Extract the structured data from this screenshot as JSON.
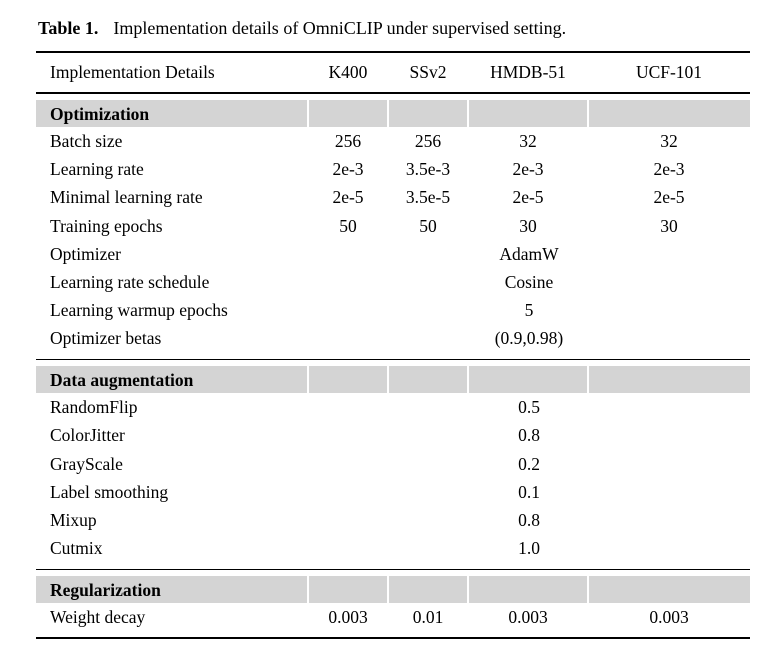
{
  "caption": {
    "label": "Table 1.",
    "text": "Implementation details of OmniCLIP under supervised setting."
  },
  "colors": {
    "section_bg": "#d4d4d4"
  },
  "table": {
    "columns": [
      "Implementation Details",
      "K400",
      "SSv2",
      "HMDB-51",
      "UCF-101"
    ],
    "sections": [
      {
        "title": "Optimization",
        "rows": [
          {
            "label": "Batch size",
            "values": [
              "256",
              "256",
              "32",
              "32"
            ]
          },
          {
            "label": "Learning rate",
            "values": [
              "2e-3",
              "3.5e-3",
              "2e-3",
              "2e-3"
            ]
          },
          {
            "label": "Minimal learning rate",
            "values": [
              "2e-5",
              "3.5e-5",
              "2e-5",
              "2e-5"
            ]
          },
          {
            "label": "Training epochs",
            "values": [
              "50",
              "50",
              "30",
              "30"
            ]
          },
          {
            "label": "Optimizer",
            "span_value": "AdamW"
          },
          {
            "label": "Learning rate schedule",
            "span_value": "Cosine"
          },
          {
            "label": "Learning warmup epochs",
            "span_value": "5"
          },
          {
            "label": "Optimizer betas",
            "span_value": "(0.9,0.98)"
          }
        ]
      },
      {
        "title": "Data augmentation",
        "rows": [
          {
            "label": "RandomFlip",
            "span_value": "0.5"
          },
          {
            "label": "ColorJitter",
            "span_value": "0.8"
          },
          {
            "label": "GrayScale",
            "span_value": "0.2"
          },
          {
            "label": "Label smoothing",
            "span_value": "0.1"
          },
          {
            "label": "Mixup",
            "span_value": "0.8"
          },
          {
            "label": "Cutmix",
            "span_value": "1.0"
          }
        ]
      },
      {
        "title": "Regularization",
        "rows": [
          {
            "label": "Weight decay",
            "values": [
              "0.003",
              "0.01",
              "0.003",
              "0.003"
            ]
          }
        ]
      }
    ]
  }
}
